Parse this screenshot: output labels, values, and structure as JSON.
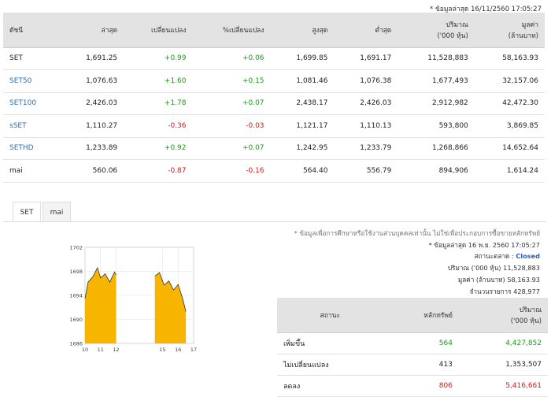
{
  "top_note": "* ข้อมูลล่าสุด 16/11/2560 17:05:27",
  "index_table": {
    "headers": [
      "ดัชนี",
      "ล่าสุด",
      "เปลี่ยนแปลง",
      "%เปลี่ยนแปลง",
      "สูงสุด",
      "ต่ำสุด",
      "ปริมาณ",
      "มูลค่า"
    ],
    "headers_sub": {
      "volume": "('000 หุ้น)",
      "value": "(ล้านบาท)"
    },
    "rows": [
      {
        "name": "SET",
        "last": "1,691.25",
        "change": "+0.99",
        "pct": "+0.06",
        "high": "1,699.85",
        "low": "1,691.17",
        "volume": "11,528,883",
        "value": "58,163.93"
      },
      {
        "name": "SET50",
        "last": "1,076.63",
        "change": "+1.60",
        "pct": "+0.15",
        "high": "1,081.46",
        "low": "1,076.38",
        "volume": "1,677,493",
        "value": "32,157.06"
      },
      {
        "name": "SET100",
        "last": "2,426.03",
        "change": "+1.78",
        "pct": "+0.07",
        "high": "2,438.17",
        "low": "2,426.03",
        "volume": "2,912,982",
        "value": "42,472.30"
      },
      {
        "name": "sSET",
        "last": "1,110.27",
        "change": "-0.36",
        "pct": "-0.03",
        "high": "1,121.17",
        "low": "1,110.13",
        "volume": "593,800",
        "value": "3,869.85"
      },
      {
        "name": "SETHD",
        "last": "1,233.89",
        "change": "+0.92",
        "pct": "+0.07",
        "high": "1,242.95",
        "low": "1,233.79",
        "volume": "1,268,866",
        "value": "14,652.64"
      },
      {
        "name": "mai",
        "last": "560.06",
        "change": "-0.87",
        "pct": "-0.16",
        "high": "564.40",
        "low": "556.79",
        "volume": "894,906",
        "value": "1,614.24"
      }
    ]
  },
  "tabs": [
    "SET",
    "mai"
  ],
  "chart_data": {
    "type": "area",
    "x_ticks": [
      "10",
      "11",
      "12",
      "15",
      "16",
      "17"
    ],
    "y_ticks": [
      "1702",
      "1698",
      "1694",
      "1690",
      "1686"
    ],
    "ylim": [
      1686,
      1702
    ],
    "fill_color": "#f7b500",
    "line_color": "#333333",
    "segments": [
      {
        "x": [
          10.0,
          10.2,
          10.5,
          10.8,
          11.0,
          11.3,
          11.6,
          11.9,
          12.0
        ],
        "y": [
          1693.5,
          1696.2,
          1697.1,
          1698.6,
          1696.9,
          1697.6,
          1696.2,
          1697.9,
          1697.4
        ]
      },
      {
        "x": [
          14.5,
          14.8,
          15.1,
          15.4,
          15.7,
          16.0,
          16.3,
          16.5
        ],
        "y": [
          1697.2,
          1697.8,
          1695.7,
          1696.4,
          1694.9,
          1695.8,
          1693.4,
          1691.3
        ]
      }
    ]
  },
  "disclaimer": "* ข้อมูลเพื่อการศึกษาหรือใช้งานส่วนบุคคลเท่านั้น ไม่ใช่เพื่อประกอบการซื้อขายหลักทรัพย์",
  "summary": {
    "updated": "* ข้อมูลล่าสุด 16 พ.ย. 2560 17:05:27",
    "status_label": "สถานะตลาด :",
    "status_value": "Closed",
    "volume_label": "ปริมาณ ('000 หุ้น)",
    "volume_value": "11,528,883",
    "value_label": "มูลค่า (ล้านบาท)",
    "value_value": "58,163.93",
    "deals_label": "จำนวนรายการ",
    "deals_value": "428,977"
  },
  "adv_table": {
    "headers": [
      "สถานะ",
      "หลักทรัพย์",
      "ปริมาณ"
    ],
    "headers_sub": "('000 หุ้น)",
    "rows": [
      {
        "label": "เพิ่มขึ้น",
        "count": "564",
        "volume": "4,427,852",
        "color": "pos"
      },
      {
        "label": "ไม่เปลี่ยนแปลง",
        "count": "413",
        "volume": "1,353,507",
        "color": "neu"
      },
      {
        "label": "ลดลง",
        "count": "806",
        "volume": "5,416,661",
        "color": "neg"
      }
    ]
  }
}
